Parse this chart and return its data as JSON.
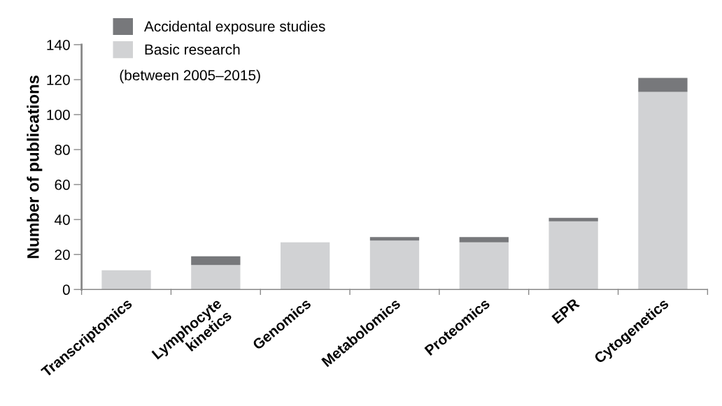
{
  "chart_data": {
    "type": "bar",
    "stacked": true,
    "ylabel": "Number of publications",
    "categories": [
      "Transcriptomics",
      "Lymphocyte\nkinetics",
      "Genomics",
      "Metabolomics",
      "Proteomics",
      "EPR",
      "Cytogenetics"
    ],
    "series": [
      {
        "name": "Basic research",
        "color": "#d1d2d4",
        "values": [
          11,
          14,
          27,
          28,
          27,
          39,
          113
        ]
      },
      {
        "name": "Accidental exposure studies",
        "color": "#77787b",
        "values": [
          0,
          5,
          0,
          2,
          3,
          2,
          8
        ]
      }
    ],
    "ylim": [
      0,
      140
    ],
    "yticks": [
      0,
      20,
      40,
      60,
      80,
      100,
      120,
      140
    ],
    "grid": false,
    "legend": "top left",
    "annotations": [
      "(between 2005–2015)"
    ]
  }
}
